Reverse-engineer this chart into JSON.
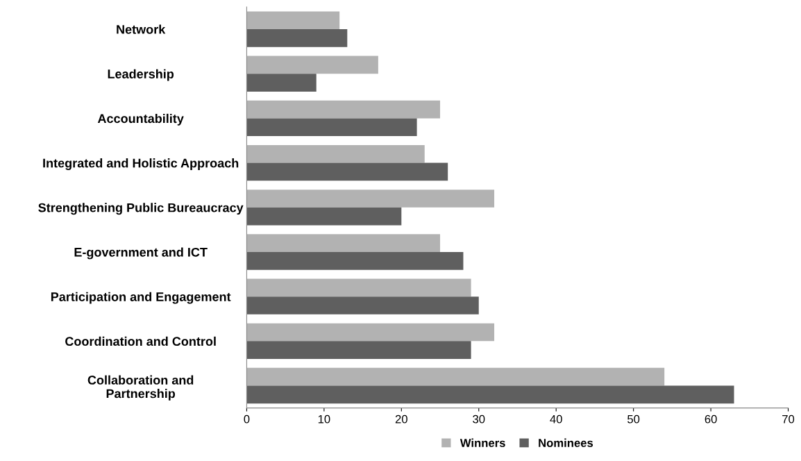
{
  "chart_data": {
    "type": "bar",
    "orientation": "horizontal",
    "categories": [
      "Network",
      "Leadership",
      "Accountability",
      "Integrated and Holistic Approach",
      "Strengthening Public Bureaucracy",
      "E-government and ICT",
      "Participation and Engagement",
      "Coordination and Control",
      "Collaboration and\nPartnership"
    ],
    "series": [
      {
        "name": "Winners",
        "color": "#b2b2b2",
        "values": [
          12,
          17,
          25,
          23,
          32,
          25,
          29,
          32,
          54
        ]
      },
      {
        "name": "Nominees",
        "color": "#5f5f5f",
        "values": [
          13,
          9,
          22,
          26,
          20,
          28,
          30,
          29,
          63
        ]
      }
    ],
    "xlim": [
      0,
      70
    ],
    "xticks": [
      0,
      10,
      20,
      30,
      40,
      50,
      60,
      70
    ],
    "grid": false,
    "legend": "bottom"
  }
}
